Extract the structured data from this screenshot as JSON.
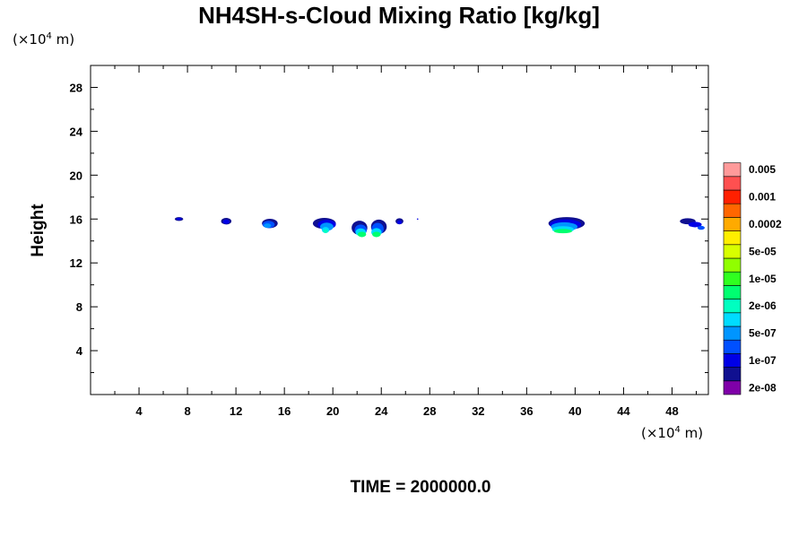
{
  "chart_data": {
    "type": "heatmap",
    "title": "NH4SH-s-Cloud Mixing Ratio [kg/kg]",
    "ylabel": "Height",
    "xlabel": "",
    "x_unit": {
      "prefix": "(×10",
      "exp": "4",
      "suffix": " m)"
    },
    "y_unit": {
      "prefix": "(×10",
      "exp": "4",
      "suffix": " m)"
    },
    "xlim": [
      0,
      51
    ],
    "ylim": [
      0,
      30
    ],
    "x_ticks": [
      4,
      8,
      12,
      16,
      20,
      24,
      28,
      32,
      36,
      40,
      44,
      48
    ],
    "y_ticks": [
      4,
      8,
      12,
      16,
      20,
      24,
      28
    ],
    "x_minor_step": 2,
    "y_minor_step": 2,
    "grid": false,
    "time_label": "TIME = 2000000.0",
    "colorbar": {
      "colors": [
        "#7f00a8",
        "#101090",
        "#0000e6",
        "#0050ff",
        "#0095ff",
        "#00dcff",
        "#00ffc0",
        "#00ff70",
        "#30ff20",
        "#90ff00",
        "#d8ff00",
        "#ffee00",
        "#ffaa00",
        "#ff6600",
        "#ff2000",
        "#ff5050",
        "#ff9a9a"
      ],
      "labels": [
        {
          "text": "2e-08",
          "level": 0
        },
        {
          "text": "1e-07",
          "level": 2
        },
        {
          "text": "5e-07",
          "level": 4
        },
        {
          "text": "2e-06",
          "level": 6
        },
        {
          "text": "1e-05",
          "level": 8
        },
        {
          "text": "5e-05",
          "level": 10
        },
        {
          "text": "0.0002",
          "level": 12
        },
        {
          "text": "0.001",
          "level": 14
        },
        {
          "text": "0.005",
          "level": 16
        }
      ]
    },
    "blobs": [
      {
        "x": 7.3,
        "y": 16.0,
        "w": 0.7,
        "h": 0.35,
        "color": "#101090"
      },
      {
        "x": 7.3,
        "y": 16.0,
        "w": 0.45,
        "h": 0.2,
        "color": "#0000e6"
      },
      {
        "x": 11.2,
        "y": 15.8,
        "w": 0.85,
        "h": 0.6,
        "color": "#101090"
      },
      {
        "x": 11.2,
        "y": 15.75,
        "w": 0.55,
        "h": 0.4,
        "color": "#0000e6"
      },
      {
        "x": 14.8,
        "y": 15.6,
        "w": 1.3,
        "h": 0.85,
        "color": "#101090"
      },
      {
        "x": 14.7,
        "y": 15.5,
        "w": 1.0,
        "h": 0.65,
        "color": "#0050ff"
      },
      {
        "x": 14.6,
        "y": 15.4,
        "w": 0.6,
        "h": 0.4,
        "color": "#0095ff"
      },
      {
        "x": 19.3,
        "y": 15.6,
        "w": 1.9,
        "h": 1.0,
        "color": "#101090"
      },
      {
        "x": 19.5,
        "y": 15.5,
        "w": 1.5,
        "h": 0.85,
        "color": "#0000e6"
      },
      {
        "x": 19.5,
        "y": 15.3,
        "w": 1.1,
        "h": 0.75,
        "color": "#0095ff"
      },
      {
        "x": 19.4,
        "y": 15.0,
        "w": 0.6,
        "h": 0.55,
        "color": "#00dcff"
      },
      {
        "x": 19.4,
        "y": 14.9,
        "w": 0.4,
        "h": 0.35,
        "color": "#00ffc0"
      },
      {
        "x": 22.2,
        "y": 15.2,
        "w": 1.3,
        "h": 1.3,
        "color": "#101090"
      },
      {
        "x": 22.3,
        "y": 15.0,
        "w": 1.0,
        "h": 1.0,
        "color": "#0050ff"
      },
      {
        "x": 22.3,
        "y": 14.8,
        "w": 0.85,
        "h": 0.7,
        "color": "#00dcff"
      },
      {
        "x": 22.4,
        "y": 14.6,
        "w": 0.7,
        "h": 0.5,
        "color": "#00ff70"
      },
      {
        "x": 23.8,
        "y": 15.3,
        "w": 1.3,
        "h": 1.3,
        "color": "#101090"
      },
      {
        "x": 23.7,
        "y": 15.1,
        "w": 1.0,
        "h": 1.1,
        "color": "#0050ff"
      },
      {
        "x": 23.6,
        "y": 14.8,
        "w": 0.85,
        "h": 0.75,
        "color": "#00dcff"
      },
      {
        "x": 23.6,
        "y": 14.6,
        "w": 0.7,
        "h": 0.5,
        "color": "#00ff70"
      },
      {
        "x": 25.5,
        "y": 15.8,
        "w": 0.65,
        "h": 0.55,
        "color": "#101090"
      },
      {
        "x": 25.5,
        "y": 15.7,
        "w": 0.4,
        "h": 0.35,
        "color": "#0000e6"
      },
      {
        "x": 27.0,
        "y": 16.0,
        "w": 0.12,
        "h": 0.1,
        "color": "#0000e6"
      },
      {
        "x": 39.3,
        "y": 15.6,
        "w": 3.0,
        "h": 1.15,
        "color": "#101090"
      },
      {
        "x": 39.2,
        "y": 15.5,
        "w": 2.6,
        "h": 0.95,
        "color": "#0000e6"
      },
      {
        "x": 39.1,
        "y": 15.3,
        "w": 2.2,
        "h": 0.8,
        "color": "#0095ff"
      },
      {
        "x": 39.0,
        "y": 15.05,
        "w": 1.8,
        "h": 0.6,
        "color": "#00dcff"
      },
      {
        "x": 39.0,
        "y": 14.9,
        "w": 1.5,
        "h": 0.4,
        "color": "#00ff70"
      },
      {
        "x": 49.3,
        "y": 15.8,
        "w": 1.3,
        "h": 0.55,
        "color": "#101090"
      },
      {
        "x": 49.9,
        "y": 15.5,
        "w": 1.1,
        "h": 0.5,
        "color": "#0000e6"
      },
      {
        "x": 50.4,
        "y": 15.2,
        "w": 0.6,
        "h": 0.35,
        "color": "#0050ff"
      }
    ]
  }
}
